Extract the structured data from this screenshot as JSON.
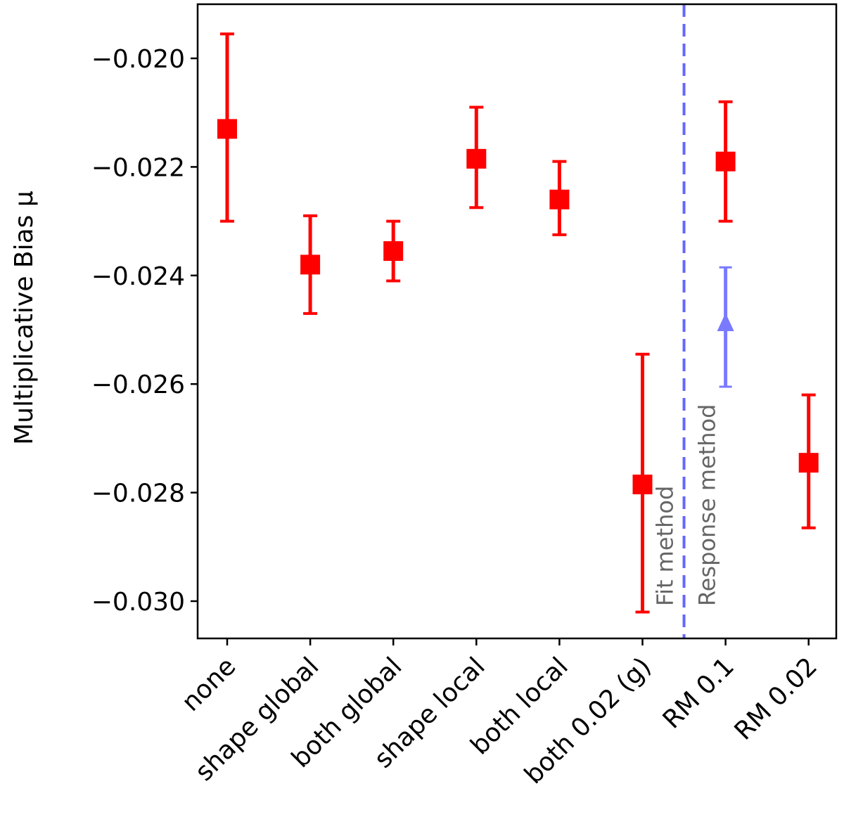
{
  "chart_data": {
    "type": "scatter",
    "title": "",
    "xlabel": "",
    "ylabel": "Multiplicative Bias μ",
    "ylim": [
      -0.0307,
      -0.0189
    ],
    "yticks": [
      -0.02,
      -0.022,
      -0.024,
      -0.026,
      -0.028,
      -0.03
    ],
    "ytick_labels": [
      "−0.020",
      "−0.022",
      "−0.024",
      "−0.026",
      "−0.028",
      "−0.030"
    ],
    "grid": false,
    "categories": [
      "none",
      "shape global",
      "both global",
      "shape local",
      "both local",
      "both 0.02 (g)",
      "RM 0.1",
      "RM 0.02"
    ],
    "series": [
      {
        "name": "multiplicative bias",
        "color": "#ff0000",
        "marker": "square",
        "values": [
          -0.0213,
          -0.0238,
          -0.02355,
          -0.02185,
          -0.0226,
          -0.02785,
          -0.0219,
          -0.02745
        ],
        "err_low": [
          -0.023,
          -0.0247,
          -0.0241,
          -0.02275,
          -0.02325,
          -0.0302,
          -0.023,
          -0.02865
        ],
        "err_high": [
          -0.01955,
          -0.0229,
          -0.023,
          -0.0209,
          -0.0219,
          -0.02545,
          -0.0208,
          -0.0262
        ]
      }
    ],
    "annotations": {
      "divider": {
        "x": 5.5,
        "color": "#6666ff",
        "style": "dashed"
      },
      "left_label": "Fit method",
      "right_label": "Response method",
      "label_color": "#666666",
      "arrow": {
        "category_index": 6,
        "y_low": -0.02605,
        "y_high": -0.02385,
        "arrow_head": -0.025,
        "color": "#7a7aff"
      }
    }
  }
}
